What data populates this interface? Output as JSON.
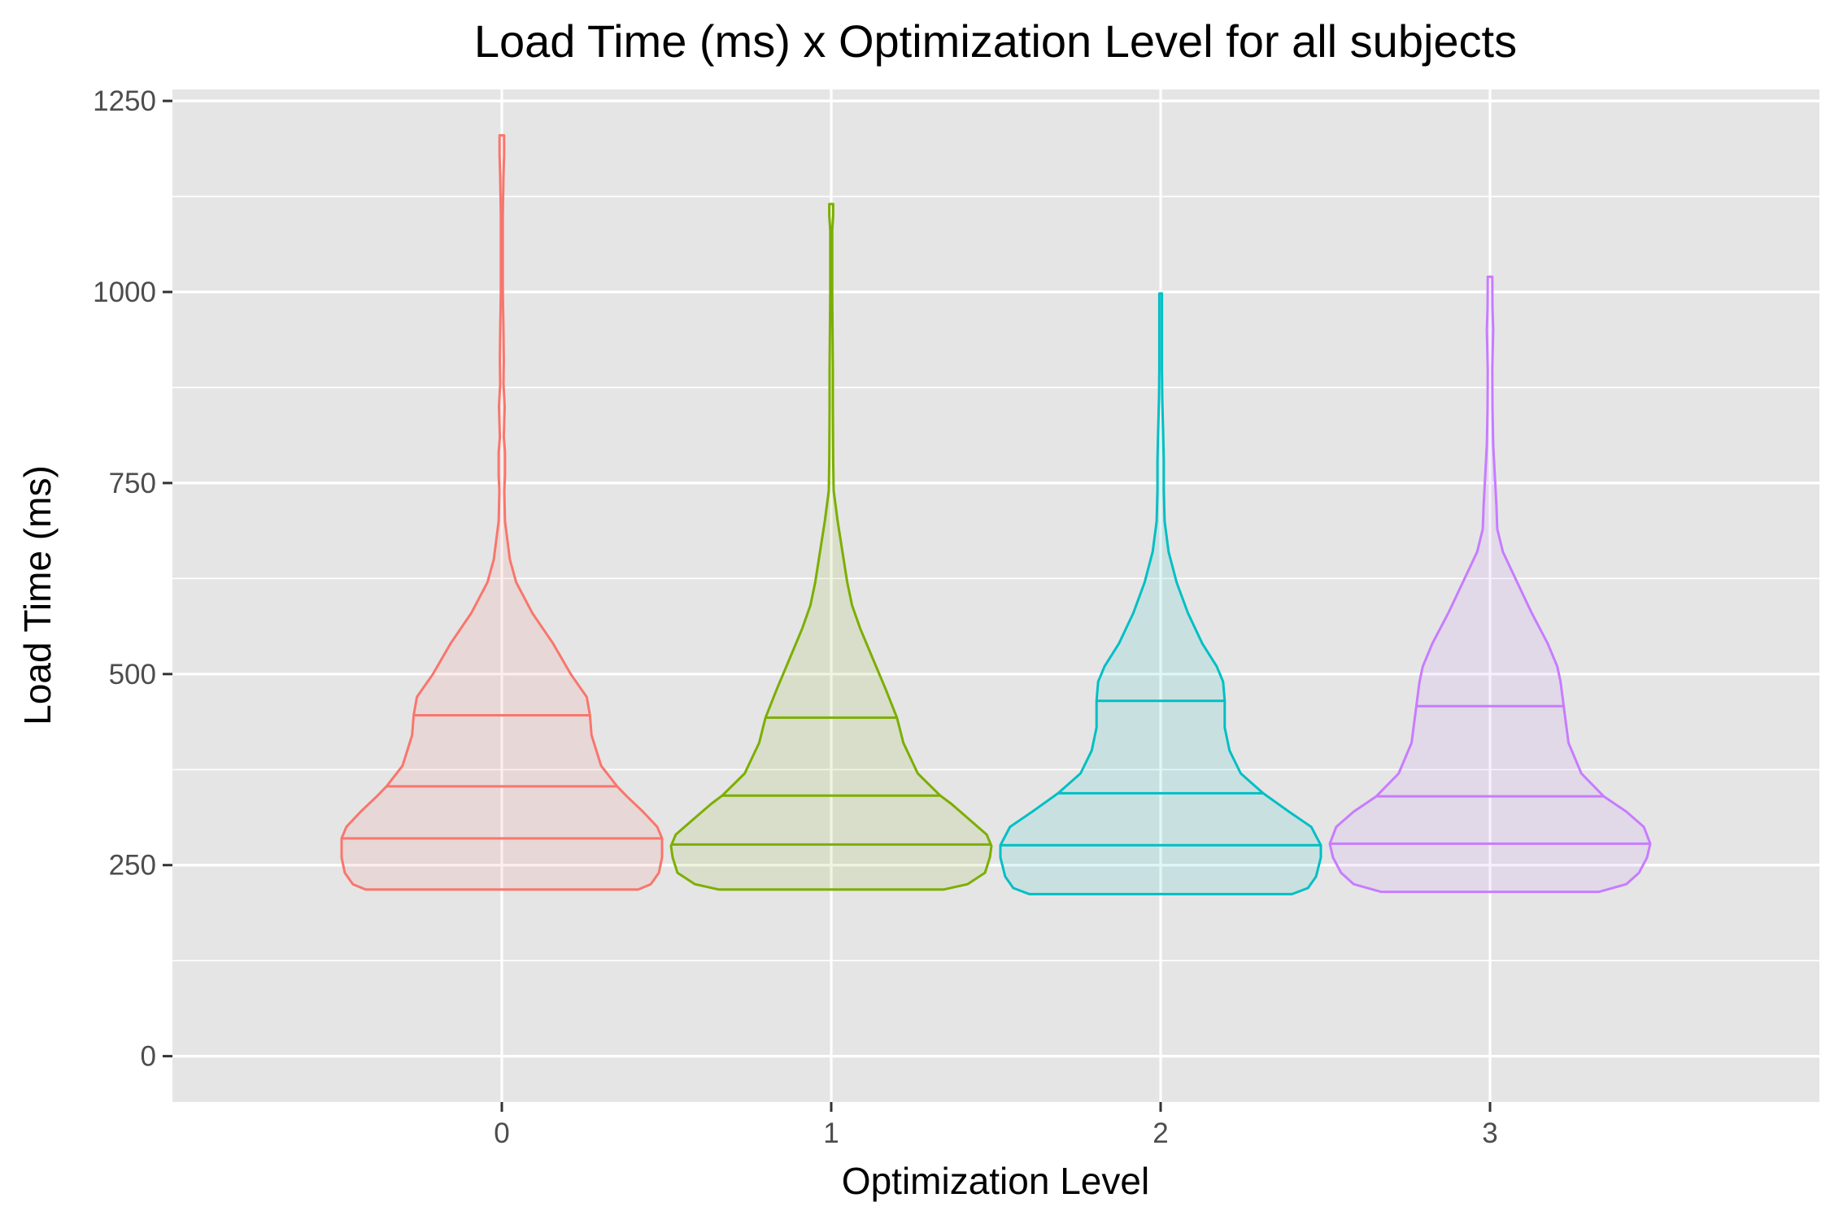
{
  "chart_data": {
    "type": "violin",
    "title": "Load Time (ms) x Optimization Level for all subjects",
    "xlabel": "Optimization Level",
    "ylabel": "Load Time (ms)",
    "ylim": [
      -60,
      1265
    ],
    "y_major_ticks": [
      0,
      250,
      500,
      750,
      1000,
      1250
    ],
    "y_minor_ticks": [
      125,
      375,
      625,
      875,
      1125
    ],
    "grid": true,
    "legend": "none",
    "quantiles_drawn": [
      0.25,
      0.5,
      0.75
    ],
    "categories": [
      "0",
      "1",
      "2",
      "3"
    ],
    "series": [
      {
        "category": "0",
        "color": "#F8766D",
        "min": 218,
        "max": 1205,
        "quantiles": [
          285,
          353,
          446
        ],
        "profile": [
          [
            218,
            0.85
          ],
          [
            225,
            0.93
          ],
          [
            240,
            0.98
          ],
          [
            260,
            1.0
          ],
          [
            285,
            1.0
          ],
          [
            300,
            0.97
          ],
          [
            320,
            0.88
          ],
          [
            340,
            0.78
          ],
          [
            353,
            0.72
          ],
          [
            380,
            0.62
          ],
          [
            420,
            0.56
          ],
          [
            446,
            0.55
          ],
          [
            470,
            0.53
          ],
          [
            500,
            0.43
          ],
          [
            540,
            0.32
          ],
          [
            580,
            0.19
          ],
          [
            620,
            0.09
          ],
          [
            650,
            0.05
          ],
          [
            700,
            0.02
          ],
          [
            740,
            0.015
          ],
          [
            760,
            0.02
          ],
          [
            790,
            0.02
          ],
          [
            810,
            0.012
          ],
          [
            850,
            0.018
          ],
          [
            880,
            0.01
          ],
          [
            910,
            0.012
          ],
          [
            950,
            0.01
          ],
          [
            1000,
            0.006
          ],
          [
            1050,
            0.006
          ],
          [
            1100,
            0.006
          ],
          [
            1150,
            0.01
          ],
          [
            1180,
            0.014
          ],
          [
            1205,
            0.014
          ]
        ]
      },
      {
        "category": "1",
        "color": "#7CAE00",
        "min": 218,
        "max": 1115,
        "quantiles": [
          277,
          341,
          443
        ],
        "profile": [
          [
            218,
            0.7
          ],
          [
            225,
            0.85
          ],
          [
            240,
            0.96
          ],
          [
            260,
            0.99
          ],
          [
            275,
            1.0
          ],
          [
            290,
            0.97
          ],
          [
            310,
            0.86
          ],
          [
            330,
            0.75
          ],
          [
            341,
            0.68
          ],
          [
            370,
            0.54
          ],
          [
            410,
            0.45
          ],
          [
            443,
            0.41
          ],
          [
            480,
            0.34
          ],
          [
            520,
            0.26
          ],
          [
            560,
            0.18
          ],
          [
            590,
            0.13
          ],
          [
            620,
            0.1
          ],
          [
            660,
            0.07
          ],
          [
            700,
            0.04
          ],
          [
            740,
            0.015
          ],
          [
            780,
            0.012
          ],
          [
            850,
            0.01
          ],
          [
            900,
            0.01
          ],
          [
            1000,
            0.006
          ],
          [
            1080,
            0.006
          ],
          [
            1100,
            0.012
          ],
          [
            1115,
            0.012
          ]
        ]
      },
      {
        "category": "2",
        "color": "#00BFC4",
        "min": 212,
        "max": 998,
        "quantiles": [
          276,
          344,
          465
        ],
        "profile": [
          [
            212,
            0.82
          ],
          [
            220,
            0.92
          ],
          [
            235,
            0.97
          ],
          [
            260,
            1.0
          ],
          [
            276,
            1.0
          ],
          [
            300,
            0.94
          ],
          [
            320,
            0.8
          ],
          [
            344,
            0.64
          ],
          [
            370,
            0.5
          ],
          [
            400,
            0.43
          ],
          [
            430,
            0.4
          ],
          [
            465,
            0.4
          ],
          [
            490,
            0.39
          ],
          [
            510,
            0.35
          ],
          [
            540,
            0.26
          ],
          [
            580,
            0.17
          ],
          [
            620,
            0.1
          ],
          [
            660,
            0.05
          ],
          [
            700,
            0.025
          ],
          [
            740,
            0.02
          ],
          [
            780,
            0.02
          ],
          [
            820,
            0.015
          ],
          [
            860,
            0.01
          ],
          [
            900,
            0.008
          ],
          [
            950,
            0.008
          ],
          [
            998,
            0.008
          ]
        ]
      },
      {
        "category": "3",
        "color": "#C77CFF",
        "min": 215,
        "max": 1020,
        "quantiles": [
          278,
          340,
          458
        ],
        "profile": [
          [
            215,
            0.68
          ],
          [
            225,
            0.85
          ],
          [
            240,
            0.93
          ],
          [
            260,
            0.98
          ],
          [
            278,
            1.0
          ],
          [
            300,
            0.96
          ],
          [
            320,
            0.85
          ],
          [
            340,
            0.71
          ],
          [
            370,
            0.57
          ],
          [
            410,
            0.49
          ],
          [
            458,
            0.46
          ],
          [
            490,
            0.44
          ],
          [
            510,
            0.42
          ],
          [
            540,
            0.36
          ],
          [
            580,
            0.26
          ],
          [
            620,
            0.17
          ],
          [
            660,
            0.08
          ],
          [
            690,
            0.045
          ],
          [
            720,
            0.04
          ],
          [
            760,
            0.03
          ],
          [
            800,
            0.02
          ],
          [
            850,
            0.015
          ],
          [
            900,
            0.014
          ],
          [
            950,
            0.02
          ],
          [
            980,
            0.015
          ],
          [
            1020,
            0.014
          ]
        ]
      }
    ]
  }
}
